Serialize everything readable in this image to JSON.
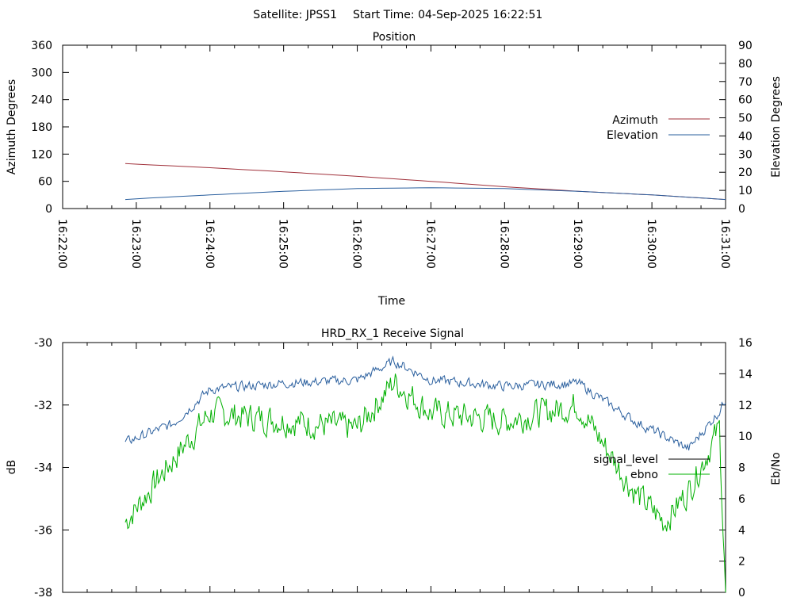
{
  "header": {
    "satellite": "Satellite: JPSS1",
    "start_time": "Start Time: 04-Sep-2025 16:22:51"
  },
  "colors": {
    "azimuth": "#a0303a",
    "elevation": "#2a5f9e",
    "signal_level": "#2a5f9e",
    "ebno": "#00b000",
    "axes": "#000000"
  },
  "chart_data": [
    {
      "type": "line",
      "title": "Position",
      "xlabel": "Time",
      "ylabel": "Azimuth Degrees",
      "y2label": "Elevation Degrees",
      "xlim": [
        "16:22:00",
        "16:31:00"
      ],
      "ylim": [
        0,
        360
      ],
      "y2lim": [
        0,
        90
      ],
      "x_ticks": [
        "16:22:00",
        "16:23:00",
        "16:24:00",
        "16:25:00",
        "16:26:00",
        "16:27:00",
        "16:28:00",
        "16:29:00",
        "16:30:00",
        "16:31:00"
      ],
      "y_ticks": [
        "0",
        "60",
        "120",
        "180",
        "240",
        "300",
        "360"
      ],
      "y2_ticks": [
        "0",
        "10",
        "20",
        "30",
        "40",
        "50",
        "60",
        "70",
        "80",
        "90"
      ],
      "legend_position": "right",
      "grid": false,
      "series": [
        {
          "name": "Azimuth",
          "axis": "y",
          "x": [
            "16:22:51",
            "16:24:00",
            "16:25:00",
            "16:26:00",
            "16:27:00",
            "16:28:00",
            "16:29:00",
            "16:30:00",
            "16:31:00"
          ],
          "values": [
            99,
            90,
            81,
            71,
            60,
            48,
            38,
            30,
            20
          ]
        },
        {
          "name": "Elevation",
          "axis": "y2",
          "x": [
            "16:22:51",
            "16:23:30",
            "16:24:00",
            "16:25:00",
            "16:26:00",
            "16:27:00",
            "16:28:00",
            "16:29:00",
            "16:30:00",
            "16:31:00"
          ],
          "values": [
            5,
            6.5,
            7.5,
            9.5,
            11,
            11.5,
            11,
            9.5,
            7.5,
            5
          ]
        }
      ]
    },
    {
      "type": "line",
      "title": "HRD_RX_1 Receive Signal",
      "ylabel": "dB",
      "y2label": "Eb/No",
      "xlim": [
        "16:22:00",
        "16:31:00"
      ],
      "ylim": [
        -38,
        -30
      ],
      "y2lim": [
        0,
        16
      ],
      "y_ticks": [
        "-30",
        "-32",
        "-34",
        "-36",
        "-38"
      ],
      "y2_ticks": [
        "0",
        "2",
        "4",
        "6",
        "8",
        "10",
        "12",
        "14",
        "16"
      ],
      "legend_position": "right",
      "grid": false,
      "series": [
        {
          "name": "signal_level",
          "axis": "y",
          "x": [
            "16:22:51",
            "16:23:30",
            "16:24:00",
            "16:25:00",
            "16:26:00",
            "16:26:30",
            "16:27:00",
            "16:28:00",
            "16:29:00",
            "16:29:45",
            "16:30:30",
            "16:30:55",
            "16:31:00"
          ],
          "values": [
            -33.2,
            -32.6,
            -31.5,
            -31.3,
            -31.2,
            -30.6,
            -31.2,
            -31.4,
            -31.3,
            -32.5,
            -33.4,
            -32.2,
            -31.8
          ]
        },
        {
          "name": "ebno",
          "axis": "y2",
          "x": [
            "16:22:51",
            "16:23:30",
            "16:24:00",
            "16:25:00",
            "16:26:00",
            "16:26:30",
            "16:27:00",
            "16:28:00",
            "16:29:00",
            "16:29:45",
            "16:30:10",
            "16:30:30",
            "16:30:55",
            "16:31:00"
          ],
          "values": [
            4.5,
            8.5,
            11.5,
            11,
            10.5,
            13.5,
            11.5,
            11,
            12,
            6.5,
            4.5,
            6.5,
            10.5,
            0
          ]
        }
      ]
    }
  ]
}
